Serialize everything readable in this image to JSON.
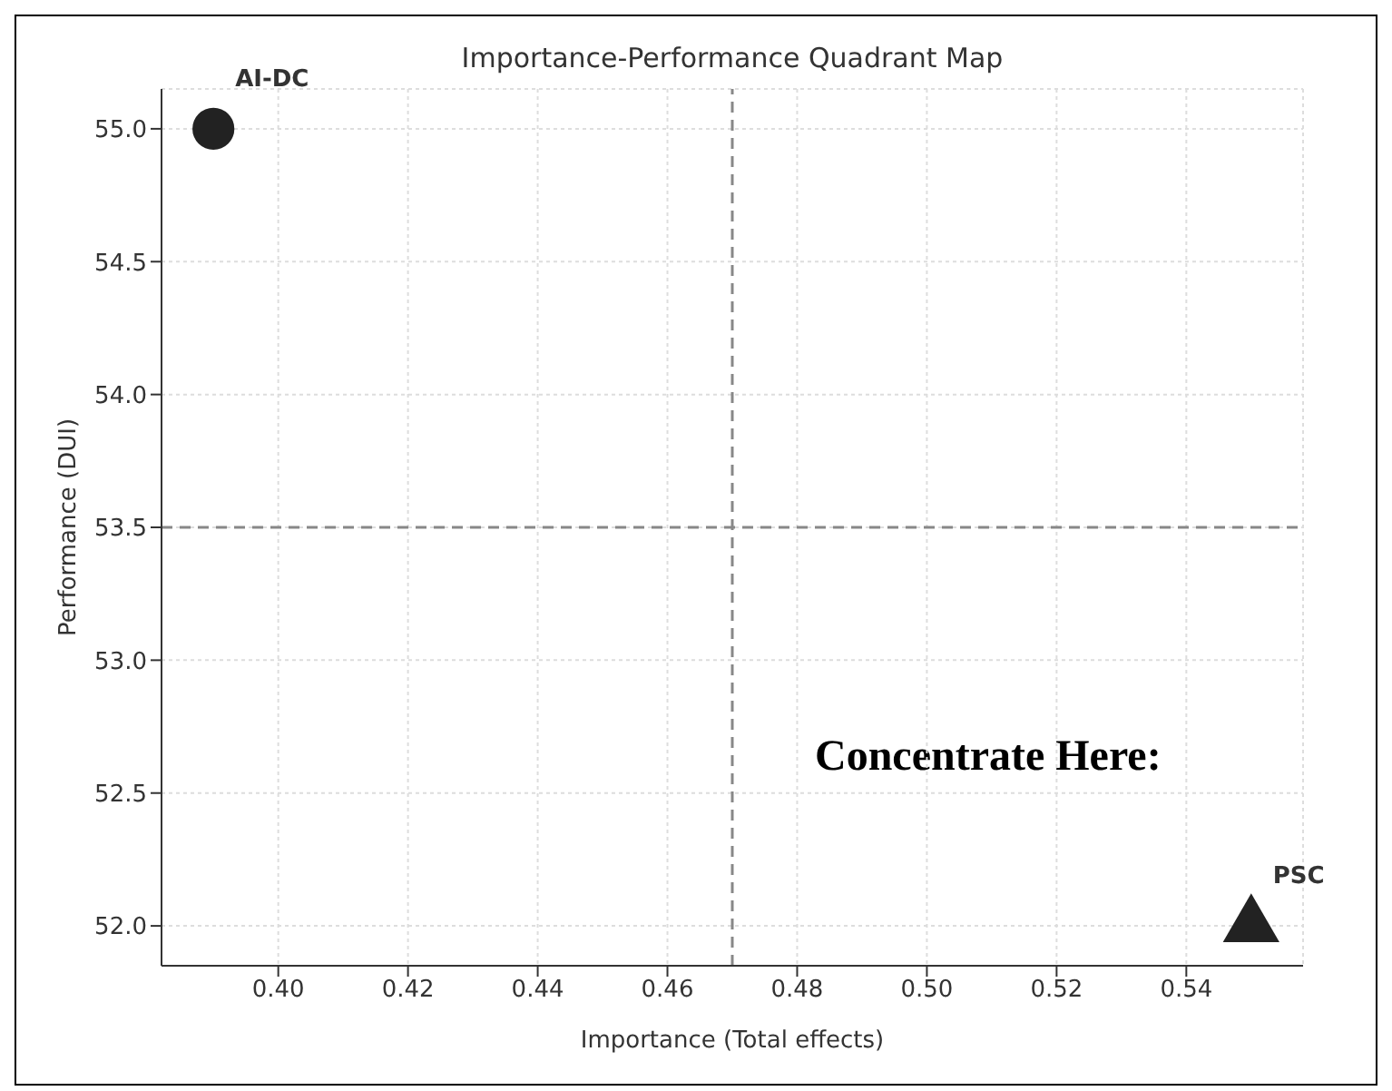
{
  "chart_data": {
    "type": "scatter",
    "title": "Importance-Performance Quadrant Map",
    "xlabel": "Importance (Total effects)",
    "ylabel": "Performance (DUI)",
    "series": [
      {
        "name": "AI-DC",
        "color": "#222222",
        "x": [
          0.39
        ],
        "values": [
          55.0
        ],
        "marker": "circle"
      },
      {
        "name": "PSC",
        "color": "#222222",
        "x": [
          0.55
        ],
        "values": [
          52.0
        ],
        "marker": "triangle"
      }
    ],
    "xlim": [
      0.382,
      0.558
    ],
    "xticks": [
      {
        "value": 0.4,
        "label": "0.40"
      },
      {
        "value": 0.42,
        "label": "0.42"
      },
      {
        "value": 0.44,
        "label": "0.44"
      },
      {
        "value": 0.46,
        "label": "0.46"
      },
      {
        "value": 0.48,
        "label": "0.48"
      },
      {
        "value": 0.5,
        "label": "0.50"
      },
      {
        "value": 0.52,
        "label": "0.52"
      },
      {
        "value": 0.54,
        "label": "0.54"
      }
    ],
    "ylim": [
      51.85,
      55.15
    ],
    "yticks": [
      {
        "value": 52,
        "label": "52.0"
      },
      {
        "value": 52.5,
        "label": "52.5"
      },
      {
        "value": 53,
        "label": "53.0"
      },
      {
        "value": 53.5,
        "label": "53.5"
      },
      {
        "value": 54,
        "label": "54.0"
      },
      {
        "value": 54.5,
        "label": "54.5"
      },
      {
        "value": 55,
        "label": "55.0"
      }
    ],
    "ref_lines": [
      {
        "axis": "x",
        "value": 0.47,
        "color": "#888888",
        "line_style": "dashed"
      },
      {
        "axis": "y",
        "value": 53.5,
        "color": "#888888",
        "line_style": "dashed"
      }
    ],
    "annotations": [
      "Concentrate Here:"
    ],
    "grid": true,
    "legend": false
  }
}
